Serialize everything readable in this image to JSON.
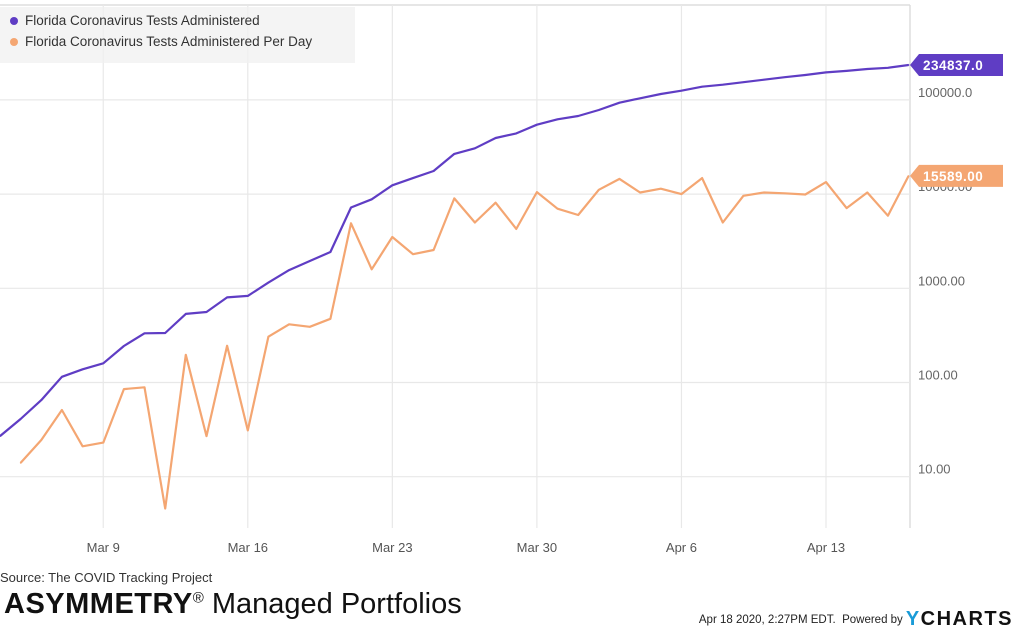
{
  "chart_data": {
    "type": "line",
    "yscale": "log",
    "ylim": [
      3,
      400000
    ],
    "yticks": [
      10,
      100,
      1000,
      10000,
      100000
    ],
    "ytick_labels": [
      "10.00",
      "100.00",
      "1000.00",
      "10000.00",
      "100000.0"
    ],
    "xtick_labels": [
      "Mar 9",
      "Mar 16",
      "Mar 23",
      "Mar 30",
      "Apr 6",
      "Apr 13"
    ],
    "xtick_day_index": [
      5,
      12,
      19,
      26,
      33,
      40
    ],
    "x": [
      "Mar 4",
      "Mar 5",
      "Mar 6",
      "Mar 7",
      "Mar 8",
      "Mar 9",
      "Mar 10",
      "Mar 11",
      "Mar 12",
      "Mar 13",
      "Mar 14",
      "Mar 15",
      "Mar 16",
      "Mar 17",
      "Mar 18",
      "Mar 19",
      "Mar 20",
      "Mar 21",
      "Mar 22",
      "Mar 23",
      "Mar 24",
      "Mar 25",
      "Mar 26",
      "Mar 27",
      "Mar 28",
      "Mar 29",
      "Mar 30",
      "Mar 31",
      "Apr 1",
      "Apr 2",
      "Apr 3",
      "Apr 4",
      "Apr 5",
      "Apr 6",
      "Apr 7",
      "Apr 8",
      "Apr 9",
      "Apr 10",
      "Apr 11",
      "Apr 12",
      "Apr 13",
      "Apr 14",
      "Apr 15",
      "Apr 16",
      "Apr 17"
    ],
    "series": [
      {
        "name": "Florida Coronavirus Tests Administered",
        "color": "#5f3dc4",
        "last_label": "234837.0",
        "values": [
          27,
          41,
          65,
          115,
          138,
          160,
          244,
          333,
          335,
          535,
          560,
          800,
          830,
          1150,
          1560,
          1950,
          2430,
          7200,
          8800,
          12400,
          14800,
          17600,
          26700,
          30600,
          39400,
          44100,
          54600,
          62200,
          67400,
          78100,
          93400,
          104000,
          115600,
          125300,
          138000,
          145000,
          154000,
          164000,
          174000,
          184000,
          196000,
          203000,
          213000,
          219000,
          234837
        ]
      },
      {
        "name": "Florida Coronavirus Tests Administered Per Day",
        "color": "#f4a672",
        "last_label": "15589.00",
        "values": [
          null,
          14,
          24.5,
          51,
          21,
          23,
          85,
          89,
          4.6,
          197,
          27,
          245,
          31,
          306,
          415,
          390,
          475,
          4900,
          1590,
          3500,
          2300,
          2550,
          9000,
          5000,
          8100,
          4270,
          10500,
          7000,
          6000,
          11100,
          14500,
          10400,
          11400,
          10000,
          14800,
          5000,
          9600,
          10400,
          10200,
          9900,
          13400,
          7100,
          10400,
          5900,
          15589
        ]
      }
    ],
    "legend_placement": "top-left",
    "grid": true
  },
  "footer": {
    "source": "Source: The COVID Tracking Project",
    "brand_bold": "ASYMMETRY",
    "brand_reg": "®",
    "brand_rest": " Managed Portfolios",
    "timestamp": "Apr 18 2020, 2:27PM EDT.",
    "powered_by": "Powered by",
    "ycharts_y": "Y",
    "ycharts_rest": "CHARTS"
  }
}
